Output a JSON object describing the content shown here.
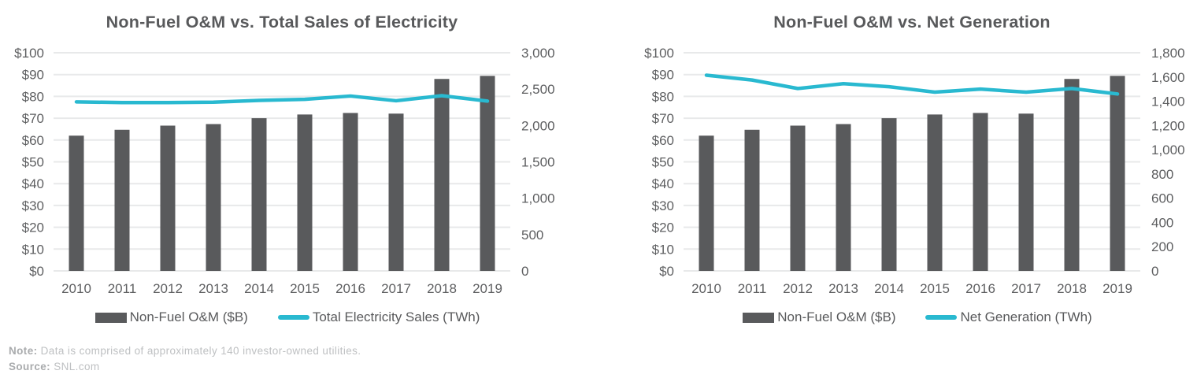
{
  "style": {
    "background": "#ffffff",
    "title_color": "#58595B",
    "axis_text_color": "#5E5F61",
    "gridline_color": "#E8E9EA",
    "bar_color": "#595A5C",
    "line_color": "#29B9D0",
    "note_label_color": "#A9ABAD",
    "note_text_color": "#BEC0C2"
  },
  "chart_data": [
    {
      "type": "combo-bar-line",
      "title": "Non-Fuel O&M vs. Total Sales of Electricity",
      "categories": [
        "2010",
        "2011",
        "2012",
        "2013",
        "2014",
        "2015",
        "2016",
        "2017",
        "2018",
        "2019"
      ],
      "series": [
        {
          "name": "Non-Fuel O&M ($B)",
          "type": "bar",
          "axis": "left",
          "color": "#595A5C",
          "values": [
            62,
            64.7,
            66.6,
            67.3,
            70,
            71.7,
            72.4,
            72.1,
            88,
            89.4
          ]
        },
        {
          "name": "Total Electricity Sales (TWh)",
          "type": "line",
          "axis": "right",
          "color": "#29B9D0",
          "values": [
            2325,
            2315,
            2315,
            2320,
            2345,
            2360,
            2405,
            2340,
            2410,
            2335
          ]
        }
      ],
      "left_axis": {
        "min": 0,
        "max": 100,
        "step": 10,
        "labels": [
          "$0",
          "$10",
          "$20",
          "$30",
          "$40",
          "$50",
          "$60",
          "$70",
          "$80",
          "$90",
          "$100"
        ]
      },
      "right_axis": {
        "min": 0,
        "max": 3000,
        "step": 500,
        "labels": [
          "0",
          "500",
          "1,000",
          "1,500",
          "2,000",
          "2,500",
          "3,000"
        ]
      },
      "grid": true,
      "legend_position": "bottom"
    },
    {
      "type": "combo-bar-line",
      "title": "Non-Fuel O&M vs. Net Generation",
      "categories": [
        "2010",
        "2011",
        "2012",
        "2013",
        "2014",
        "2015",
        "2016",
        "2017",
        "2018",
        "2019"
      ],
      "series": [
        {
          "name": "Non-Fuel O&M ($B)",
          "type": "bar",
          "axis": "left",
          "color": "#595A5C",
          "values": [
            62,
            64.7,
            66.6,
            67.3,
            70,
            71.7,
            72.4,
            72.1,
            88,
            89.4
          ]
        },
        {
          "name": "Net Generation (TWh)",
          "type": "line",
          "axis": "right",
          "color": "#29B9D0",
          "values": [
            1615,
            1575,
            1505,
            1545,
            1520,
            1475,
            1500,
            1475,
            1505,
            1460
          ]
        }
      ],
      "left_axis": {
        "min": 0,
        "max": 100,
        "step": 10,
        "labels": [
          "$0",
          "$10",
          "$20",
          "$30",
          "$40",
          "$50",
          "$60",
          "$70",
          "$80",
          "$90",
          "$100"
        ]
      },
      "right_axis": {
        "min": 0,
        "max": 1800,
        "step": 200,
        "labels": [
          "0",
          "200",
          "400",
          "600",
          "800",
          "1,000",
          "1,200",
          "1,400",
          "1,600",
          "1,800"
        ]
      },
      "grid": true,
      "legend_position": "bottom"
    }
  ],
  "footer": {
    "note_label": "Note:",
    "note_text": "Data is comprised of approximately 140 investor-owned utilities.",
    "source_label": "Source:",
    "source_text": "SNL.com"
  }
}
